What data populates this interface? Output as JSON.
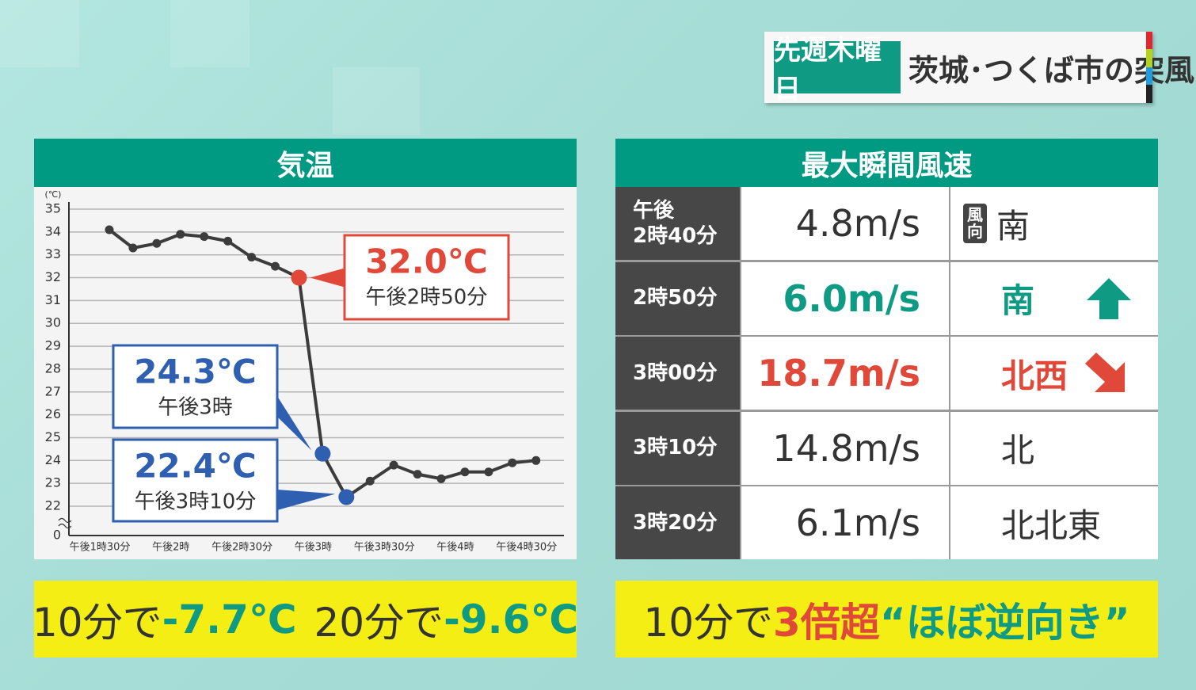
{
  "header": {
    "badge": "先週木曜日",
    "title": "茨城･つくば市の突風"
  },
  "chart_data": {
    "type": "line",
    "title": "気温",
    "y_unit": "(℃)",
    "y_break_label": "0",
    "categories": [
      "午後1時30分",
      null,
      null,
      "午後2時",
      null,
      null,
      "午後2時30分",
      null,
      null,
      "午後3時",
      null,
      null,
      "午後3時30分",
      null,
      null,
      "午後4時",
      null,
      null,
      "午後4時30分"
    ],
    "series": [
      {
        "name": "気温",
        "color": "#3c3c3c",
        "values": [
          34.1,
          33.3,
          33.5,
          33.9,
          33.8,
          33.6,
          32.9,
          32.5,
          32.0,
          24.3,
          22.4,
          23.1,
          23.8,
          23.4,
          23.2,
          23.5,
          23.5,
          23.9,
          24.0
        ]
      }
    ],
    "ylim": [
      22,
      35
    ],
    "yticks": [
      22,
      23,
      24,
      25,
      26,
      27,
      28,
      29,
      30,
      31,
      32,
      33,
      34,
      35
    ],
    "grid": true,
    "annotations": [
      {
        "value": 32.0,
        "value_label": "32.0℃",
        "label": "午後2時50分",
        "color": "#e0493a"
      },
      {
        "value": 24.3,
        "value_label": "24.3℃",
        "label": "午後3時",
        "color": "#2f5fb0"
      },
      {
        "value": 22.4,
        "value_label": "22.4℃",
        "label": "午後3時10分",
        "color": "#2f5fb0"
      }
    ]
  },
  "table": {
    "title": "最大瞬間風速",
    "rows": [
      {
        "time_prefix": "午後",
        "time": "2時40分",
        "speed": "4.8m/s",
        "direction_label": "風向",
        "direction": "南"
      },
      {
        "time": "2時50分",
        "speed": "6.0m/s",
        "direction": "南",
        "color": "#0f9a83"
      },
      {
        "time": "3時00分",
        "speed": "18.7m/s",
        "direction": "北西",
        "color": "#e0493a"
      },
      {
        "time": "3時10分",
        "speed": "14.8m/s",
        "direction": "北"
      },
      {
        "time": "3時20分",
        "speed": "6.1m/s",
        "direction": "北北東"
      }
    ]
  },
  "footer": {
    "left": [
      {
        "text": "10分で"
      },
      {
        "text": "-7.7℃",
        "color": "#0f9a83"
      },
      {
        "text": "20分で"
      },
      {
        "text": "-9.6℃",
        "color": "#0f9a83"
      }
    ],
    "right": [
      {
        "text": "10分で"
      },
      {
        "text": "3倍超",
        "color": "#e0493a"
      },
      {
        "text": "“ほぼ逆向き”",
        "color": "#0f9a83"
      }
    ]
  }
}
